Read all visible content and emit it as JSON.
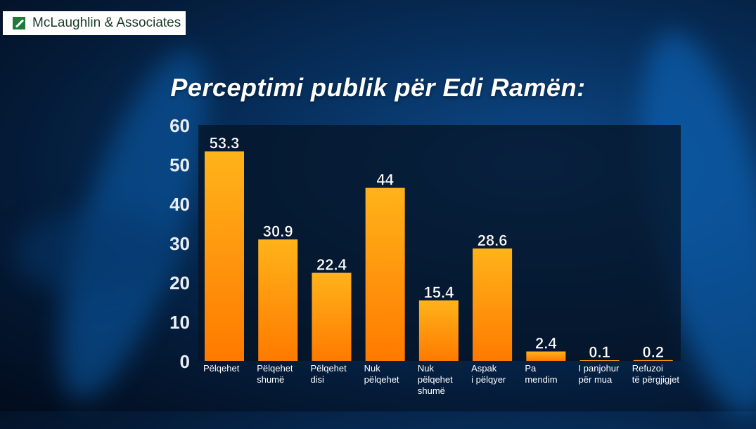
{
  "brand": {
    "name": "McLaughlin & Associates",
    "logo_icon": "green-square-logo-icon"
  },
  "chart_data": {
    "type": "bar",
    "title": "Perceptimi publik për Edi Ramën:",
    "categories": [
      [
        "Pëlqehet"
      ],
      [
        "Pëlqehet",
        "shumë"
      ],
      [
        "Pëlqehet",
        "disi"
      ],
      [
        "Nuk",
        "pëlqehet"
      ],
      [
        "Nuk",
        "pëlqehet",
        "shumë"
      ],
      [
        "Aspak",
        "i pëlqyer"
      ],
      [
        "Pa",
        "mendim"
      ],
      [
        "I panjohur",
        "për mua"
      ],
      [
        "Refuzoi",
        "të përgjigjet"
      ]
    ],
    "values": [
      53.3,
      30.9,
      22.4,
      44,
      15.4,
      28.6,
      2.4,
      0.1,
      0.2
    ],
    "value_labels": [
      "53.3",
      "30.9",
      "22.4",
      "44",
      "15.4",
      "28.6",
      "2.4",
      "0.1",
      "0.2"
    ],
    "yticks": [
      0,
      10,
      20,
      30,
      40,
      50,
      60
    ],
    "ylim": [
      0,
      60
    ],
    "xlabel": "",
    "ylabel": "",
    "grid": false,
    "colors": {
      "bar_top": "#ffb31a",
      "bar_bottom": "#ff7a00",
      "plot_bg": "#061324",
      "text": "#ffffff"
    }
  }
}
